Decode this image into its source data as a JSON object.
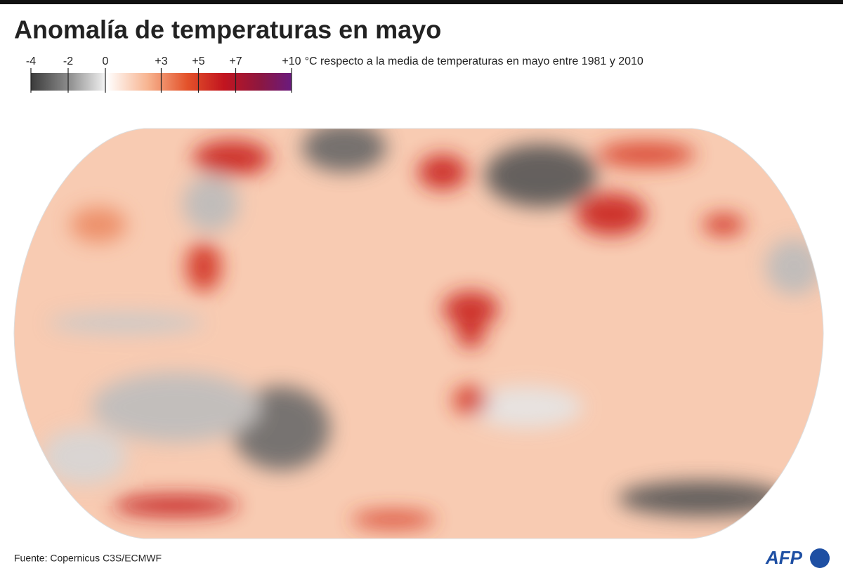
{
  "header": {
    "title": "Anomalía de temperaturas en mayo"
  },
  "legend": {
    "ticks": [
      -4,
      -2,
      0,
      {
        "value": 3,
        "label": "+3"
      },
      {
        "value": 5,
        "label": "+5"
      },
      {
        "value": 7,
        "label": "+7"
      },
      {
        "value": 10,
        "label": "+10"
      }
    ],
    "range": [
      -4,
      10
    ],
    "description": "°C respecto a la media de temperaturas en mayo entre 1981 y 2010"
  },
  "footer": {
    "source": "Fuente: Copernicus C3S/ECMWF",
    "logo": "AFP"
  }
}
